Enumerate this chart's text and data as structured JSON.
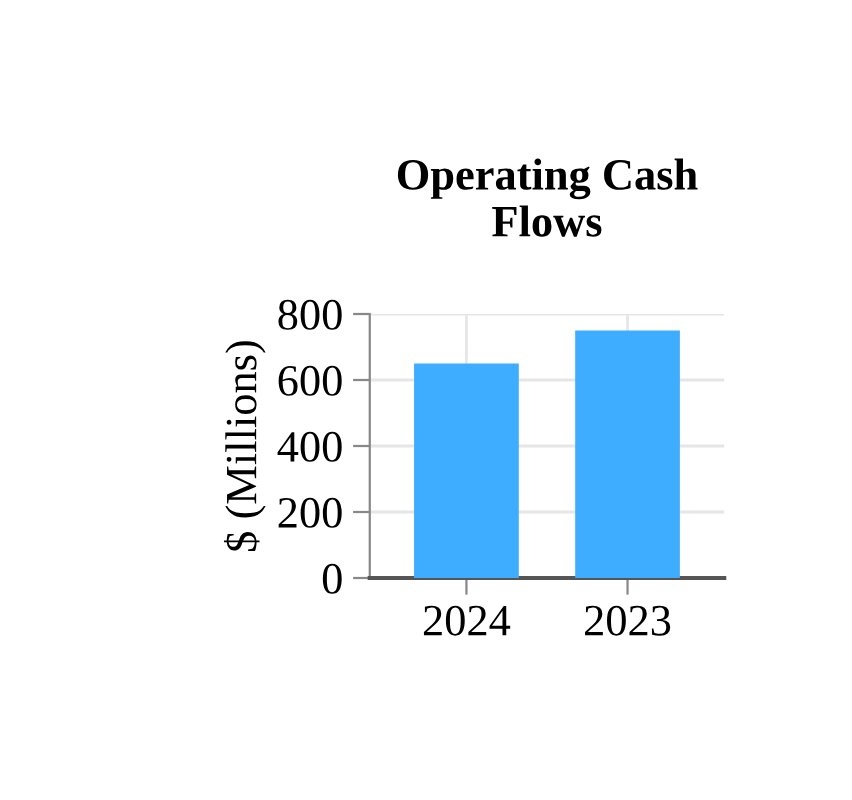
{
  "chart_data": {
    "type": "bar",
    "title": "Operating Cash\nFlows",
    "ylabel": "$ (Millions)",
    "categories": [
      "2024",
      "2023"
    ],
    "values": [
      650,
      750
    ],
    "color": "#3fadff",
    "ylim": [
      0,
      800
    ],
    "yticks": [
      0,
      200,
      400,
      600,
      800
    ],
    "grid": true,
    "legend": false
  }
}
